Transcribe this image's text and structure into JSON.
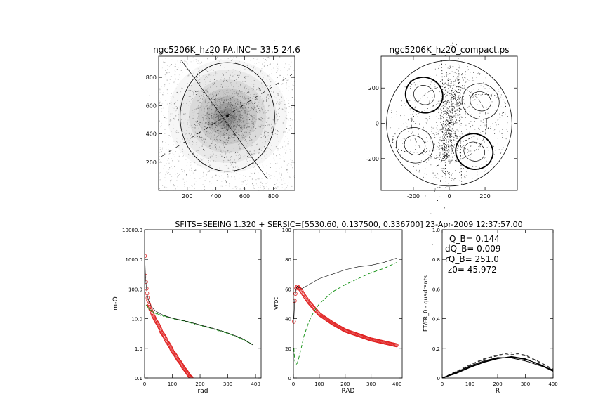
{
  "header": "SFITS=SEEING 1.320 + SERSIC=[5530.60, 0.137500, 0.336700]  23-Apr-2009 12:37:57.00",
  "chart_data": [
    {
      "id": "image_panel",
      "type": "scatter",
      "title": "ngc5206K_hz20 PA,INC= 33.5 24.6",
      "xticks": [
        "200",
        "400",
        "600",
        "800"
      ],
      "yticks": [
        "200",
        "400",
        "600",
        "800"
      ],
      "xlim": [
        0,
        950
      ],
      "ylim": [
        0,
        950
      ],
      "center": [
        480,
        525
      ],
      "ellipse": {
        "center": [
          480,
          520
        ],
        "rx": 330,
        "ry": 385
      },
      "pa_line": {
        "from": [
          160,
          920
        ],
        "to": [
          760,
          80
        ]
      },
      "dashed_line": {
        "from": [
          20,
          240
        ],
        "to": [
          930,
          820
        ]
      },
      "grid": false
    },
    {
      "id": "compact_panel",
      "type": "scatter",
      "title": "ngc5206K_hz20_compact.ps",
      "xticks": [
        "-200",
        "0",
        "200"
      ],
      "yticks": [
        "-200",
        "0",
        "200"
      ],
      "xlim": [
        -380,
        380
      ],
      "ylim": [
        -380,
        380
      ],
      "grid": false
    },
    {
      "id": "surface_density",
      "type": "line",
      "xlabel": "rad",
      "ylabel": "m-O",
      "xlim": [
        0,
        420
      ],
      "ylim": [
        0.1,
        10000
      ],
      "log_y": true,
      "xticks": [
        "0",
        "100",
        "200",
        "300",
        "400"
      ],
      "yticks": [
        "0.1",
        "1.0",
        "10.0",
        "100.0",
        "1000.0",
        "10000.0"
      ],
      "colors": {
        "total": "#000000",
        "disk": "#109010",
        "bulge": "#e02020"
      },
      "total": {
        "x": [
          1,
          3,
          6,
          10,
          15,
          20,
          30,
          40,
          60,
          80,
          100,
          130,
          160,
          200,
          250,
          300,
          350,
          390
        ],
        "y": [
          1100,
          300,
          120,
          60,
          40,
          30,
          22,
          18,
          14,
          12,
          10.5,
          9,
          7.8,
          6.2,
          4.6,
          3.3,
          2.2,
          1.3
        ]
      },
      "disk": {
        "x": [
          5,
          10,
          15,
          20,
          30,
          40,
          60,
          80,
          100,
          130,
          160,
          200,
          250,
          300,
          350,
          390
        ],
        "y": [
          30,
          25,
          22,
          20,
          17,
          15,
          13,
          11.5,
          10.2,
          8.8,
          7.6,
          6.0,
          4.5,
          3.2,
          2.1,
          1.3
        ]
      },
      "bulge": {
        "x": [
          1,
          3,
          6,
          10,
          15,
          20,
          30,
          40,
          60,
          80,
          100,
          120,
          140,
          160,
          170
        ],
        "y": [
          1300,
          280,
          120,
          55,
          32,
          22,
          13,
          8.5,
          3.6,
          1.7,
          0.8,
          0.42,
          0.22,
          0.12,
          0.1
        ]
      }
    },
    {
      "id": "rotation_curve",
      "type": "line",
      "xlabel": "RAD",
      "ylabel": "vrot",
      "xlim": [
        0,
        420
      ],
      "ylim": [
        0,
        100
      ],
      "xticks": [
        "0",
        "100",
        "200",
        "300",
        "400"
      ],
      "yticks": [
        "0",
        "20",
        "40",
        "60",
        "80",
        "100"
      ],
      "colors": {
        "total": "#000000",
        "disk": "#109010",
        "bulge": "#e02020"
      },
      "total": {
        "x": [
          2,
          5,
          10,
          15,
          20,
          30,
          40,
          60,
          80,
          100,
          150,
          200,
          250,
          300,
          350,
          400
        ],
        "y": [
          40,
          52,
          60,
          62,
          61,
          60,
          61,
          63,
          65,
          67,
          70,
          73,
          75,
          76,
          78,
          81
        ]
      },
      "disk": {
        "x": [
          2,
          5,
          10,
          15,
          20,
          30,
          40,
          60,
          80,
          100,
          150,
          200,
          250,
          300,
          350,
          400
        ],
        "y": [
          20,
          12,
          9,
          10,
          13,
          20,
          28,
          38,
          45,
          50,
          58,
          63,
          67,
          71,
          74,
          78
        ]
      },
      "bulge": {
        "x": [
          2,
          5,
          10,
          15,
          20,
          30,
          40,
          60,
          80,
          100,
          150,
          200,
          250,
          300,
          350,
          400
        ],
        "y": [
          38,
          52,
          60,
          62,
          61,
          59,
          56,
          51,
          47,
          43,
          37,
          32,
          29,
          26,
          24,
          22
        ]
      }
    },
    {
      "id": "ft_quadrants",
      "type": "line",
      "xlabel": "R",
      "ylabel": "FT/FR_0 - quadrants",
      "xlim": [
        0,
        400
      ],
      "ylim": [
        0,
        1
      ],
      "xticks": [
        "0",
        "100",
        "200",
        "300",
        "400"
      ],
      "yticks": [
        "0",
        "0.2",
        "0.4",
        "0.6",
        "0.8",
        "1.0"
      ],
      "annotations": [
        "Q_B=  0.144",
        "dQ_B=  0.009",
        "rQ_B=  251.0",
        "z0= 45.972"
      ],
      "solid_series": [
        {
          "x": [
            0,
            50,
            100,
            150,
            200,
            250,
            300,
            350,
            400
          ],
          "y": [
            0,
            0.035,
            0.075,
            0.11,
            0.135,
            0.14,
            0.125,
            0.095,
            0.05
          ]
        },
        {
          "x": [
            0,
            50,
            100,
            150,
            200,
            250,
            300,
            350,
            400
          ],
          "y": [
            0,
            0.03,
            0.07,
            0.105,
            0.13,
            0.145,
            0.13,
            0.09,
            0.045
          ]
        },
        {
          "x": [
            0,
            50,
            100,
            150,
            200,
            250,
            300,
            350,
            400
          ],
          "y": [
            0,
            0.04,
            0.08,
            0.115,
            0.138,
            0.135,
            0.115,
            0.085,
            0.055
          ]
        },
        {
          "x": [
            0,
            50,
            100,
            150,
            200,
            250,
            300,
            350,
            400
          ],
          "y": [
            0,
            0.032,
            0.072,
            0.108,
            0.132,
            0.142,
            0.128,
            0.092,
            0.048
          ]
        }
      ],
      "dashed_series": [
        {
          "x": [
            0,
            50,
            100,
            150,
            200,
            250,
            300,
            350,
            400
          ],
          "y": [
            0,
            0.045,
            0.09,
            0.13,
            0.155,
            0.17,
            0.155,
            0.11,
            0.06
          ]
        },
        {
          "x": [
            0,
            50,
            100,
            150,
            200,
            250,
            300,
            350,
            400
          ],
          "y": [
            0,
            0.04,
            0.085,
            0.125,
            0.15,
            0.16,
            0.15,
            0.105,
            0.055
          ]
        }
      ]
    }
  ]
}
